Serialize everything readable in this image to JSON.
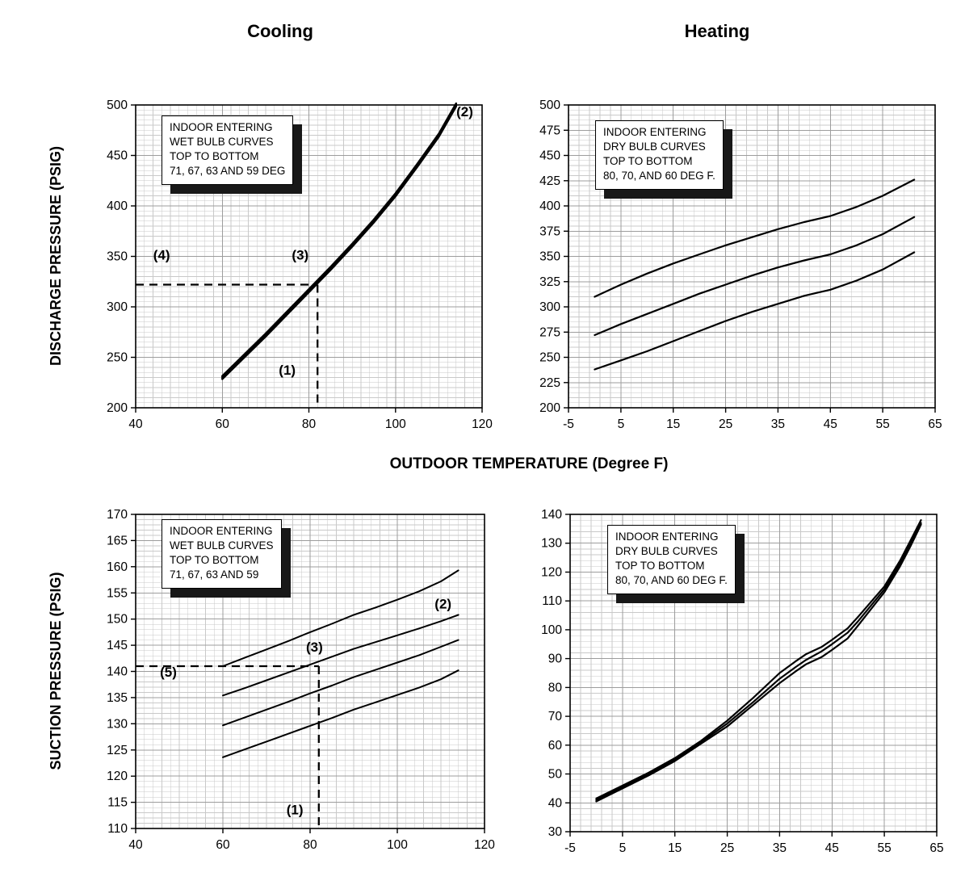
{
  "page": {
    "column_titles": [
      "Cooling",
      "Heating"
    ]
  },
  "chart_data": [
    {
      "id": "cooling-discharge-pressure",
      "column": "Cooling",
      "type": "line",
      "ylabel": "DISCHARGE PRESSURE (PSIG)",
      "xlabel": "OUTDOOR TEMPERATURE (Degree F)",
      "x_range": [
        40,
        120
      ],
      "y_range": [
        200,
        500
      ],
      "x_ticks": [
        40,
        60,
        80,
        100,
        120
      ],
      "y_ticks": [
        200,
        250,
        300,
        350,
        400,
        450,
        500
      ],
      "x_minor_step": 2,
      "y_minor_step": 5,
      "grid": "fine",
      "legend_lines": [
        "INDOOR ENTERING",
        "WET BULB CURVES",
        "TOP TO BOTTOM",
        "71, 67, 63 AND 59 DEG"
      ],
      "series": [
        {
          "name": "71 DEG WB",
          "width": 2.4,
          "points": [
            [
              60,
              231.5
            ],
            [
              65,
              252.5
            ],
            [
              70,
              273.5
            ],
            [
              75,
              295.5
            ],
            [
              80,
              317.5
            ],
            [
              85,
              339.5
            ],
            [
              90,
              362.5
            ],
            [
              95,
              386.5
            ],
            [
              100,
              412.5
            ],
            [
              105,
              441.5
            ],
            [
              110,
              471.5
            ],
            [
              114,
              501.5
            ]
          ]
        },
        {
          "name": "67 DEG WB",
          "width": 2.4,
          "points": [
            [
              60,
              230.5
            ],
            [
              65,
              251.5
            ],
            [
              70,
              272.5
            ],
            [
              75,
              294.5
            ],
            [
              80,
              316.5
            ],
            [
              85,
              338.5
            ],
            [
              90,
              361.5
            ],
            [
              95,
              385.5
            ],
            [
              100,
              411.5
            ],
            [
              105,
              440.5
            ],
            [
              110,
              470.5
            ],
            [
              114,
              500.5
            ]
          ]
        },
        {
          "name": "63 DEG WB",
          "width": 2.4,
          "points": [
            [
              60,
              229.5
            ],
            [
              65,
              250.5
            ],
            [
              70,
              271.5
            ],
            [
              75,
              293.5
            ],
            [
              80,
              315.5
            ],
            [
              85,
              337.5
            ],
            [
              90,
              360.5
            ],
            [
              95,
              384.5
            ],
            [
              100,
              410.5
            ],
            [
              105,
              439.5
            ],
            [
              110,
              469.5
            ],
            [
              114,
              499.5
            ]
          ]
        },
        {
          "name": "59 DEG WB",
          "width": 2.4,
          "points": [
            [
              60,
              228.5
            ],
            [
              65,
              249.5
            ],
            [
              70,
              270.5
            ],
            [
              75,
              292.5
            ],
            [
              80,
              314.5
            ],
            [
              85,
              336.5
            ],
            [
              90,
              359.5
            ],
            [
              95,
              383.5
            ],
            [
              100,
              409.5
            ],
            [
              105,
              438.5
            ],
            [
              110,
              468.5
            ],
            [
              114,
              498.5
            ]
          ]
        }
      ],
      "dashed_lines": [
        {
          "from": [
            40,
            322
          ],
          "to": [
            82,
            322
          ]
        },
        {
          "from": [
            82,
            322
          ],
          "to": [
            82,
            200
          ]
        }
      ],
      "annotations": [
        {
          "label": "(2)",
          "x": 116,
          "y": 489
        },
        {
          "label": "(3)",
          "x": 78,
          "y": 347
        },
        {
          "label": "(4)",
          "x": 46,
          "y": 347
        },
        {
          "label": "(1)",
          "x": 75,
          "y": 233
        }
      ]
    },
    {
      "id": "heating-discharge-pressure",
      "column": "Heating",
      "type": "line",
      "ylabel": "",
      "xlabel": "OUTDOOR TEMPERATURE (Degree F)",
      "x_range": [
        -5,
        65
      ],
      "y_range": [
        200,
        500
      ],
      "x_ticks": [
        -5,
        5,
        15,
        25,
        35,
        45,
        55,
        65
      ],
      "y_ticks": [
        200,
        225,
        250,
        275,
        300,
        325,
        350,
        375,
        400,
        425,
        450,
        475,
        500
      ],
      "x_minor_step": 2,
      "y_minor_step": 5,
      "grid": "fine",
      "legend_lines": [
        "INDOOR ENTERING",
        "DRY BULB CURVES",
        "TOP TO BOTTOM",
        "80, 70, AND 60 DEG F."
      ],
      "series": [
        {
          "name": "80 DEG DB",
          "width": 2.2,
          "points": [
            [
              0,
              310
            ],
            [
              5,
              322
            ],
            [
              10,
              333
            ],
            [
              15,
              343
            ],
            [
              20,
              352
            ],
            [
              25,
              361
            ],
            [
              30,
              369
            ],
            [
              35,
              377
            ],
            [
              40,
              384
            ],
            [
              45,
              390
            ],
            [
              50,
              399
            ],
            [
              55,
              410
            ],
            [
              61,
              426
            ]
          ]
        },
        {
          "name": "70 DEG DB",
          "width": 2.2,
          "points": [
            [
              0,
              272
            ],
            [
              5,
              283
            ],
            [
              10,
              293
            ],
            [
              15,
              303
            ],
            [
              20,
              313
            ],
            [
              25,
              322
            ],
            [
              30,
              331
            ],
            [
              35,
              339
            ],
            [
              40,
              346
            ],
            [
              45,
              352
            ],
            [
              50,
              361
            ],
            [
              55,
              372
            ],
            [
              61,
              389
            ]
          ]
        },
        {
          "name": "60 DEG DB",
          "width": 2.2,
          "points": [
            [
              0,
              238
            ],
            [
              5,
              247
            ],
            [
              10,
              256
            ],
            [
              15,
              266
            ],
            [
              20,
              276
            ],
            [
              25,
              286
            ],
            [
              30,
              295
            ],
            [
              35,
              303
            ],
            [
              40,
              311
            ],
            [
              45,
              317
            ],
            [
              50,
              326
            ],
            [
              55,
              337
            ],
            [
              61,
              354
            ]
          ]
        }
      ],
      "dashed_lines": [],
      "annotations": []
    },
    {
      "id": "cooling-suction-pressure",
      "column": "Cooling",
      "type": "line",
      "ylabel": "SUCTION PRESSURE (PSIG)",
      "xlabel": "OUTDOOR TEMPERATURE (Degree F)",
      "x_range": [
        40,
        120
      ],
      "y_range": [
        110,
        170
      ],
      "x_ticks": [
        40,
        60,
        80,
        100,
        120
      ],
      "y_ticks": [
        110,
        115,
        120,
        125,
        130,
        135,
        140,
        145,
        150,
        155,
        160,
        165,
        170
      ],
      "x_minor_step": 2,
      "y_minor_step": 1,
      "grid": "fine",
      "legend_lines": [
        "INDOOR ENTERING",
        "WET BULB CURVES",
        "TOP TO BOTTOM",
        "71, 67, 63 AND 59"
      ],
      "series": [
        {
          "name": "71 DEG WB",
          "width": 2,
          "points": [
            [
              60,
              141
            ],
            [
              65,
              142.6
            ],
            [
              70,
              144.2
            ],
            [
              75,
              145.8
            ],
            [
              80,
              147.5
            ],
            [
              85,
              149.1
            ],
            [
              90,
              150.8
            ],
            [
              95,
              152.2
            ],
            [
              100,
              153.7
            ],
            [
              105,
              155.3
            ],
            [
              110,
              157.2
            ],
            [
              114,
              159.3
            ]
          ]
        },
        {
          "name": "67 DEG WB",
          "width": 2,
          "points": [
            [
              60,
              135.4
            ],
            [
              65,
              136.8
            ],
            [
              70,
              138.3
            ],
            [
              75,
              139.8
            ],
            [
              80,
              141.3
            ],
            [
              85,
              142.8
            ],
            [
              90,
              144.3
            ],
            [
              95,
              145.6
            ],
            [
              100,
              146.9
            ],
            [
              105,
              148.2
            ],
            [
              110,
              149.6
            ],
            [
              114,
              150.8
            ]
          ]
        },
        {
          "name": "63 DEG WB",
          "width": 2,
          "points": [
            [
              60,
              129.7
            ],
            [
              65,
              131.2
            ],
            [
              70,
              132.7
            ],
            [
              75,
              134.2
            ],
            [
              80,
              135.8
            ],
            [
              85,
              137.3
            ],
            [
              90,
              138.9
            ],
            [
              95,
              140.3
            ],
            [
              100,
              141.7
            ],
            [
              105,
              143.1
            ],
            [
              110,
              144.7
            ],
            [
              114,
              146
            ]
          ]
        },
        {
          "name": "59 DEG WB",
          "width": 2,
          "points": [
            [
              60,
              123.6
            ],
            [
              65,
              125.1
            ],
            [
              70,
              126.6
            ],
            [
              75,
              128.1
            ],
            [
              80,
              129.6
            ],
            [
              85,
              131.1
            ],
            [
              90,
              132.7
            ],
            [
              95,
              134.1
            ],
            [
              100,
              135.5
            ],
            [
              105,
              136.9
            ],
            [
              110,
              138.5
            ],
            [
              114,
              140.2
            ]
          ]
        }
      ],
      "dashed_lines": [
        {
          "from": [
            40,
            141
          ],
          "to": [
            82,
            141
          ]
        },
        {
          "from": [
            82,
            141
          ],
          "to": [
            82,
            110
          ]
        }
      ],
      "annotations": [
        {
          "label": "(2)",
          "x": 110.5,
          "y": 152
        },
        {
          "label": "(3)",
          "x": 81,
          "y": 143.8
        },
        {
          "label": "(5)",
          "x": 47.5,
          "y": 139
        },
        {
          "label": "(1)",
          "x": 76.5,
          "y": 112.7
        }
      ]
    },
    {
      "id": "heating-suction-pressure",
      "column": "Heating",
      "type": "line",
      "ylabel": "",
      "xlabel": "OUTDOOR TEMPERATURE (Degree F)",
      "x_range": [
        -5,
        65
      ],
      "y_range": [
        30,
        140
      ],
      "x_ticks": [
        -5,
        5,
        15,
        25,
        35,
        45,
        55,
        65
      ],
      "y_ticks": [
        30,
        40,
        50,
        60,
        70,
        80,
        90,
        100,
        110,
        120,
        130,
        140
      ],
      "x_minor_step": 2,
      "y_minor_step": 2,
      "grid": "fine",
      "legend_lines": [
        "INDOOR ENTERING",
        "DRY BULB CURVES",
        "TOP TO BOTTOM",
        "80, 70, AND 60 DEG F."
      ],
      "series": [
        {
          "name": "80 DEG DB",
          "width": 2.2,
          "points": [
            [
              0,
              41.5
            ],
            [
              5,
              46
            ],
            [
              10,
              50.5
            ],
            [
              15,
              55.5
            ],
            [
              20,
              61.5
            ],
            [
              25,
              68.5
            ],
            [
              30,
              76.5
            ],
            [
              35,
              85
            ],
            [
              38,
              89
            ],
            [
              40,
              91.5
            ],
            [
              43,
              94
            ],
            [
              45,
              96.5
            ],
            [
              48,
              100.5
            ],
            [
              50,
              104.5
            ],
            [
              55,
              115
            ],
            [
              58,
              124
            ],
            [
              60,
              131
            ],
            [
              62,
              138
            ]
          ]
        },
        {
          "name": "70 DEG DB",
          "width": 2.2,
          "points": [
            [
              0,
              41
            ],
            [
              5,
              45.5
            ],
            [
              10,
              50
            ],
            [
              15,
              55
            ],
            [
              20,
              61
            ],
            [
              25,
              67.5
            ],
            [
              30,
              75
            ],
            [
              35,
              83
            ],
            [
              38,
              87
            ],
            [
              40,
              89.5
            ],
            [
              43,
              92.5
            ],
            [
              45,
              95
            ],
            [
              48,
              99
            ],
            [
              50,
              103
            ],
            [
              55,
              114
            ],
            [
              58,
              123
            ],
            [
              60,
              130
            ],
            [
              62,
              137
            ]
          ]
        },
        {
          "name": "60 DEG DB",
          "width": 2.2,
          "points": [
            [
              0,
              40.5
            ],
            [
              5,
              45
            ],
            [
              10,
              49.5
            ],
            [
              15,
              54.5
            ],
            [
              20,
              60.5
            ],
            [
              25,
              66.5
            ],
            [
              30,
              74
            ],
            [
              35,
              81.5
            ],
            [
              38,
              85.5
            ],
            [
              40,
              88
            ],
            [
              43,
              90.5
            ],
            [
              45,
              93
            ],
            [
              48,
              97
            ],
            [
              50,
              101.5
            ],
            [
              55,
              113
            ],
            [
              58,
              122
            ],
            [
              60,
              129
            ],
            [
              62,
              136.5
            ]
          ]
        }
      ],
      "dashed_lines": [],
      "annotations": []
    }
  ]
}
